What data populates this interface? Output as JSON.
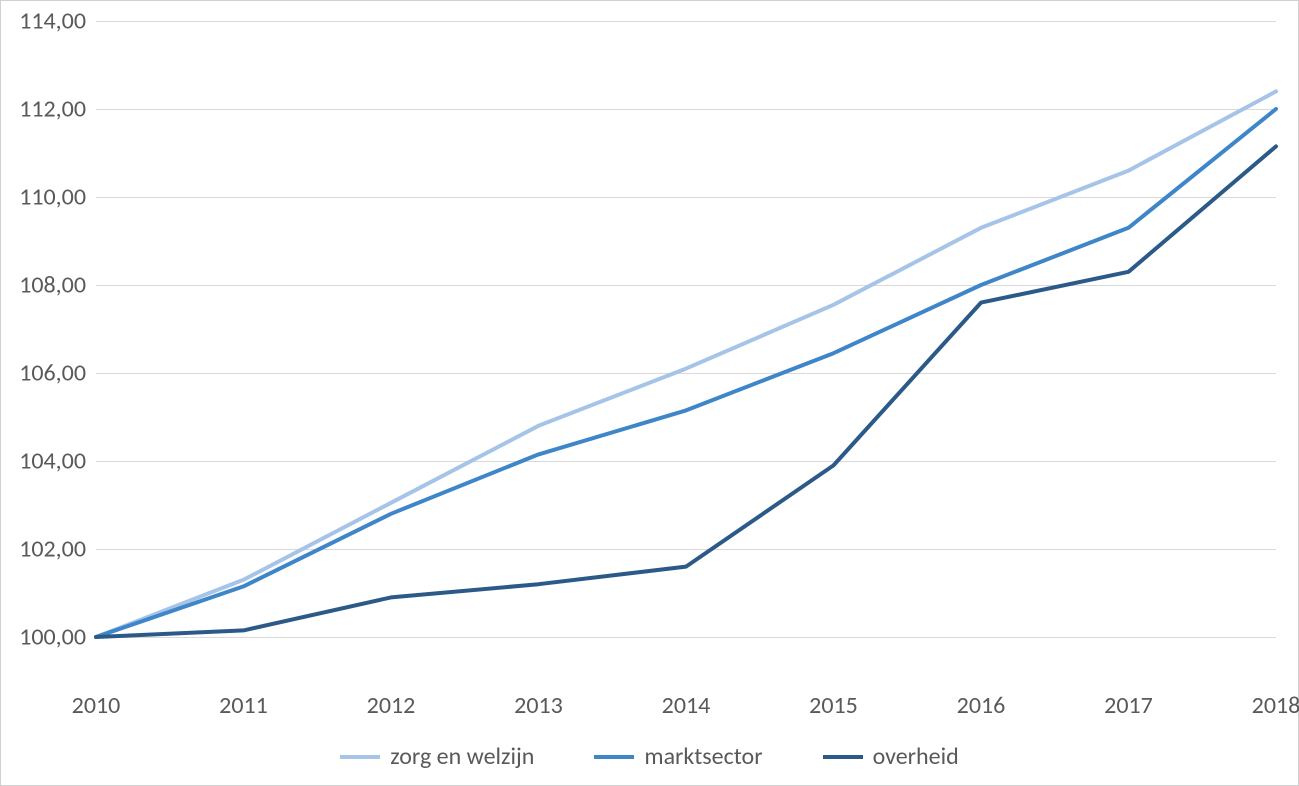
{
  "chart": {
    "type": "line",
    "background_color": "#ffffff",
    "border_color": "#d0d0d0",
    "grid_color": "#d9d9d9",
    "tick_font_size": 24,
    "tick_color": "#595959",
    "x": {
      "categories": [
        "2010",
        "2011",
        "2012",
        "2013",
        "2014",
        "2015",
        "2016",
        "2017",
        "2018"
      ]
    },
    "y": {
      "min": 99.0,
      "max": 114.0,
      "ticks": [
        "100,00",
        "102,00",
        "104,00",
        "106,00",
        "108,00",
        "110,00",
        "112,00",
        "114,00"
      ],
      "tick_values": [
        100,
        102,
        104,
        106,
        108,
        110,
        112,
        114
      ]
    },
    "series": [
      {
        "name": "zorg en welzijn",
        "color": "#a6c4e8",
        "line_width": 4,
        "values": [
          100.0,
          101.3,
          103.05,
          104.8,
          106.1,
          107.55,
          109.3,
          110.6,
          112.4
        ]
      },
      {
        "name": "marktsector",
        "color": "#3f86c9",
        "line_width": 4,
        "values": [
          100.0,
          101.15,
          102.8,
          104.15,
          105.15,
          106.45,
          108.0,
          109.3,
          112.0
        ]
      },
      {
        "name": "overheid",
        "color": "#2c5a88",
        "line_width": 4,
        "values": [
          100.0,
          100.15,
          100.9,
          101.2,
          101.6,
          103.9,
          107.6,
          108.3,
          111.15
        ]
      }
    ],
    "legend": {
      "position": "bottom",
      "font_size": 24
    }
  }
}
